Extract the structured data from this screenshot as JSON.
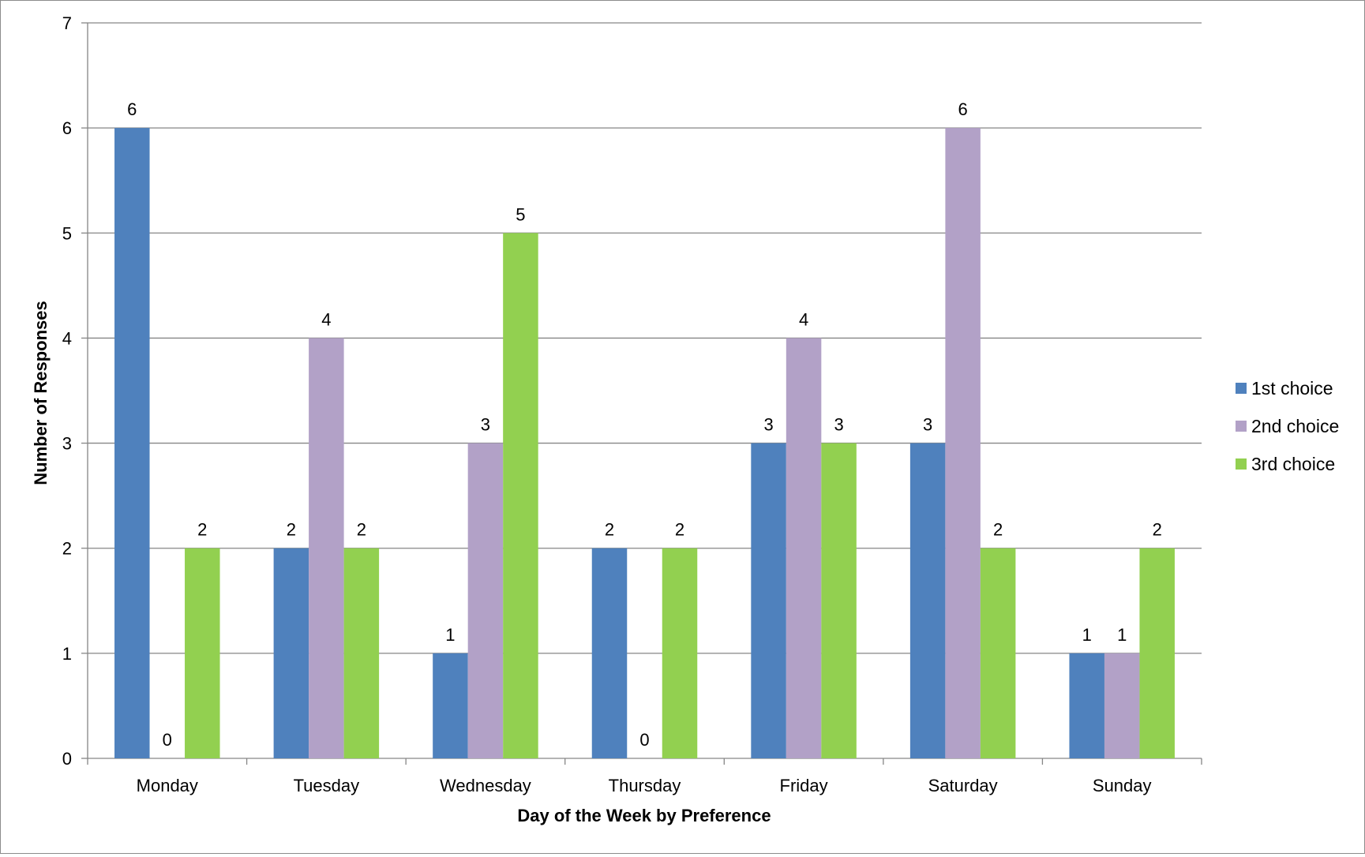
{
  "chart_data": {
    "type": "bar",
    "title": "",
    "xlabel": "Day of the Week by Preference",
    "ylabel": "Number of Responses",
    "ylim": [
      0,
      7
    ],
    "yticks": [
      "0",
      "1",
      "2",
      "3",
      "4",
      "5",
      "6",
      "7"
    ],
    "grid": true,
    "legend_position": "right",
    "categories": [
      "Monday",
      "Tuesday",
      "Wednesday",
      "Thursday",
      "Friday",
      "Saturday",
      "Sunday"
    ],
    "series": [
      {
        "name": "1st choice",
        "color": "#4f81bd",
        "values": [
          6,
          2,
          1,
          2,
          3,
          3,
          1
        ]
      },
      {
        "name": "2nd choice",
        "color": "#b2a1c7",
        "values": [
          0,
          4,
          3,
          0,
          4,
          6,
          1
        ]
      },
      {
        "name": "3rd choice",
        "color": "#92d050",
        "values": [
          2,
          2,
          5,
          2,
          3,
          2,
          2
        ]
      }
    ]
  }
}
